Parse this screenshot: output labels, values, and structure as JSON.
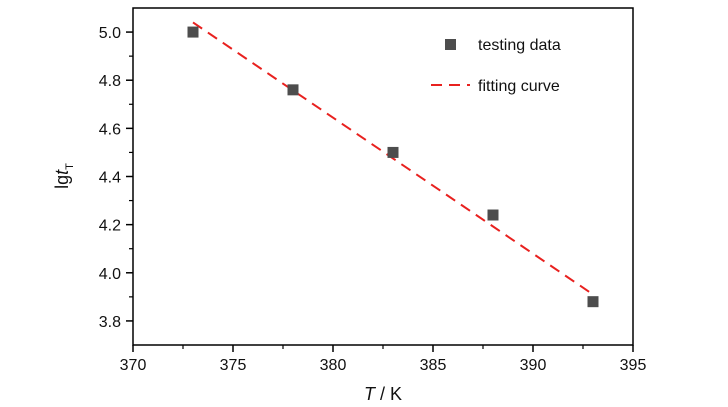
{
  "chart_data": {
    "type": "scatter",
    "title": "",
    "xlabel": {
      "symbol": "T",
      "unit": " / K"
    },
    "ylabel": {
      "base": "lg",
      "symbol": "t",
      "subscript": "T"
    },
    "xlim": [
      370,
      395
    ],
    "ylim": [
      3.7,
      5.1
    ],
    "xticks": [
      370,
      375,
      380,
      385,
      390,
      395
    ],
    "xtick_labels": [
      "370",
      "375",
      "380",
      "385",
      "390",
      "395"
    ],
    "yticks": [
      3.8,
      4.0,
      4.2,
      4.4,
      4.6,
      4.8,
      5.0
    ],
    "ytick_labels": [
      "3.8",
      "4.0",
      "4.2",
      "4.4",
      "4.6",
      "4.8",
      "5.0"
    ],
    "grid": false,
    "legend_position": "top-right",
    "series": [
      {
        "name": "testing data",
        "kind": "scatter",
        "marker": "square",
        "color": "#4d4d4d",
        "x": [
          373,
          378,
          383,
          388,
          393
        ],
        "y": [
          5.0,
          4.76,
          4.5,
          4.24,
          3.88
        ]
      },
      {
        "name": "fitting curve",
        "kind": "line",
        "style": "dashed",
        "color": "#e8211f",
        "x": [
          373,
          393
        ],
        "y": [
          5.04,
          3.91
        ]
      }
    ]
  }
}
